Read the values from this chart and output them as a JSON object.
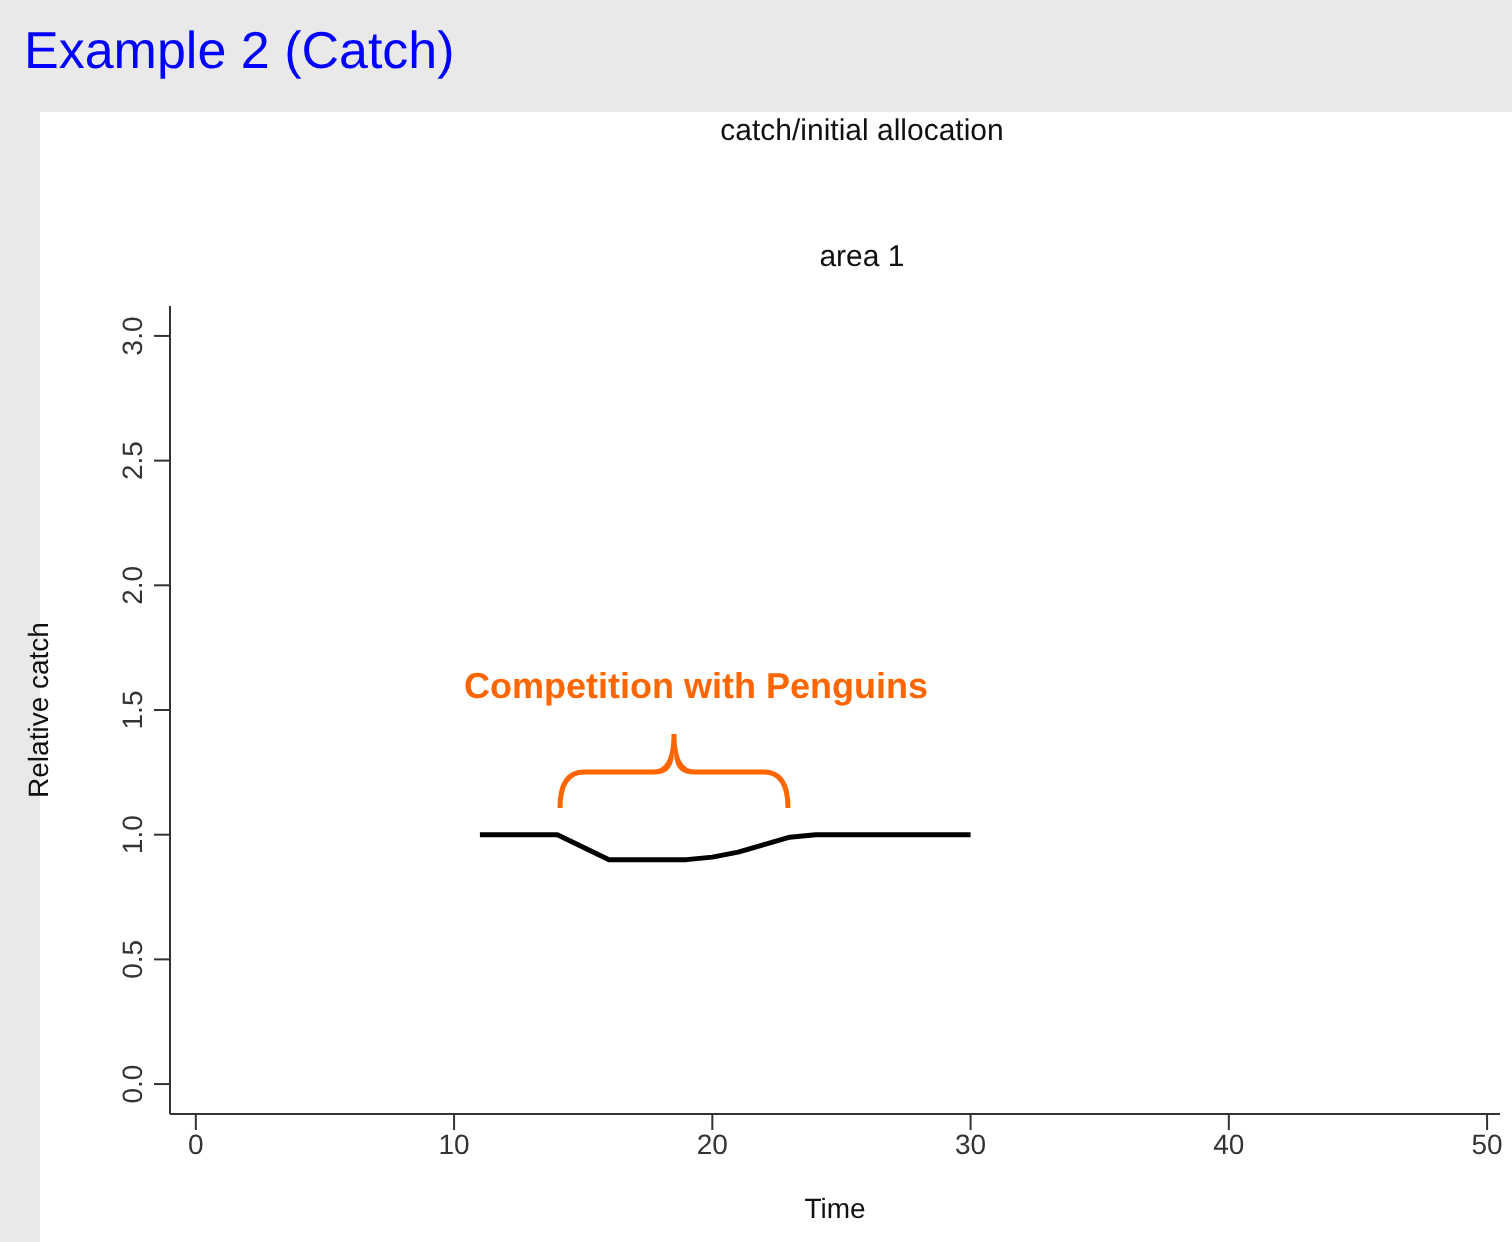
{
  "chart_data": {
    "type": "line",
    "title": "Example 2 (Catch)",
    "subtitle": "catch/initial allocation",
    "xlabel": "Time",
    "ylabel": "Relative catch",
    "annotations": [
      "area 1",
      "Competition with Penguins"
    ],
    "x": [
      11,
      12,
      13,
      14,
      15,
      16,
      17,
      18,
      19,
      20,
      21,
      22,
      23,
      24,
      25,
      26,
      27,
      28,
      29,
      30
    ],
    "series": [
      {
        "color": "#000000",
        "values": [
          1,
          1,
          1,
          1,
          0.95,
          0.9,
          0.9,
          0.9,
          0.9,
          0.91,
          0.93,
          0.96,
          0.99,
          1,
          1,
          1,
          1,
          1,
          1,
          1
        ]
      }
    ],
    "xlim": [
      -1,
      50.5
    ],
    "xticks": [
      0,
      10,
      20,
      30,
      40,
      50
    ],
    "ylim": [
      -0.12,
      3.12
    ],
    "yticks": [
      {
        "value": 0,
        "label": "0.0"
      },
      0.5,
      {
        "value": 1,
        "label": "1.0"
      },
      1.5,
      {
        "value": 2,
        "label": "2.0"
      },
      2.5,
      {
        "value": 3,
        "label": "3.0"
      }
    ],
    "grid": false,
    "marker": "none",
    "line_style": "solid"
  }
}
